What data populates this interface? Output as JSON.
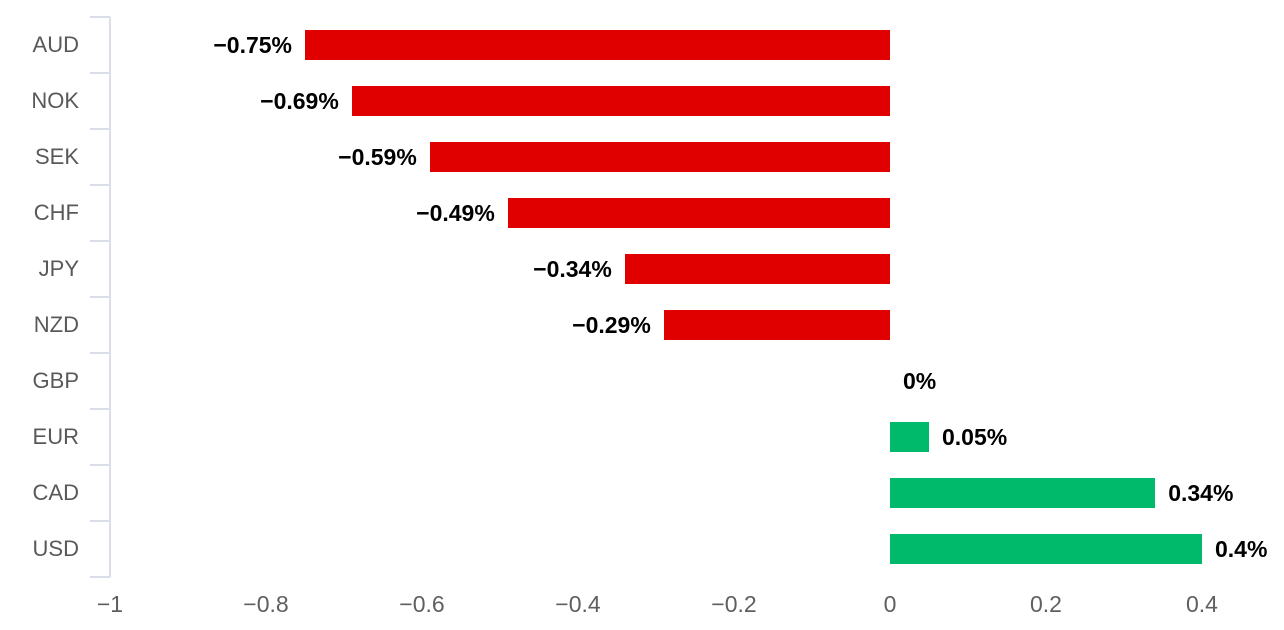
{
  "chart_data": {
    "type": "bar",
    "orientation": "horizontal",
    "title": "",
    "xlabel": "",
    "ylabel": "",
    "categories": [
      "AUD",
      "NOK",
      "SEK",
      "CHF",
      "JPY",
      "NZD",
      "GBP",
      "EUR",
      "CAD",
      "USD"
    ],
    "values": [
      -0.75,
      -0.69,
      -0.59,
      -0.49,
      -0.34,
      -0.29,
      0,
      0.05,
      0.34,
      0.4
    ],
    "value_labels": [
      "−0.75%",
      "−0.69%",
      "−0.59%",
      "−0.49%",
      "−0.34%",
      "−0.29%",
      "0%",
      "0.05%",
      "0.34%",
      "0.4%"
    ],
    "xlim": [
      -1,
      0.4
    ],
    "x_ticks": [
      -1,
      -0.8,
      -0.6,
      -0.4,
      -0.2,
      0,
      0.2,
      0.4
    ],
    "x_tick_labels": [
      "−1",
      "−0.8",
      "−0.6",
      "−0.4",
      "−0.2",
      "0",
      "0.2",
      "0.4"
    ],
    "grid": false,
    "legend": false,
    "colors": {
      "negative_bar": "#e00000",
      "positive_bar": "#00ba6b",
      "axis_line": "#d9dee8",
      "category_label": "#595959",
      "x_tick_label": "#5f5f5f",
      "value_label": "#000000",
      "background": "#ffffff"
    }
  }
}
